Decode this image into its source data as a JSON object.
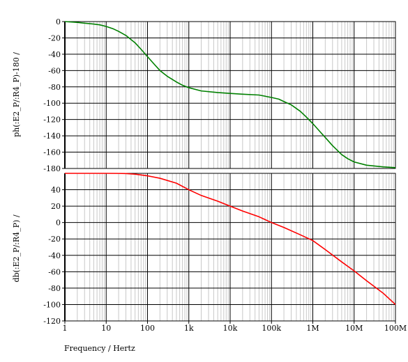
{
  "chart_data": [
    {
      "type": "line",
      "panel": "top",
      "ylabel": "ph(:E2_P/:R4_P)-180 /",
      "xscale": "log",
      "xlim": [
        1,
        100000000
      ],
      "ylim": [
        -180,
        0
      ],
      "yticks": [
        0,
        -20,
        -40,
        -60,
        -80,
        -100,
        -120,
        -140,
        -160,
        -180
      ],
      "ytick_labels": [
        "0",
        "-20",
        "-40",
        "-60",
        "-80",
        "-100",
        "-120",
        "-140",
        "-160",
        "-180"
      ],
      "grid": true,
      "color": "#008000",
      "series": [
        {
          "x": [
            1,
            2,
            3,
            5,
            7,
            10,
            15,
            20,
            30,
            50,
            70,
            100,
            150,
            200,
            300,
            500,
            700,
            1000,
            2000,
            5000,
            10000,
            20000,
            50000,
            100000,
            150000,
            200000,
            300000,
            500000,
            700000,
            1000000,
            1500000,
            2000000,
            3000000,
            5000000,
            7000000,
            10000000,
            20000000,
            50000000,
            100000000
          ],
          "values": [
            0,
            -1,
            -2,
            -3,
            -4,
            -6,
            -9,
            -12,
            -17,
            -26,
            -34,
            -43,
            -53,
            -60,
            -67,
            -74,
            -78,
            -81,
            -85,
            -87,
            -88,
            -89,
            -90,
            -93,
            -95,
            -98,
            -102,
            -110,
            -117,
            -125,
            -135,
            -142,
            -152,
            -163,
            -168,
            -172,
            -176,
            -178,
            -179
          ]
        }
      ]
    },
    {
      "type": "line",
      "panel": "bottom",
      "ylabel": "db(:E2_P/:R4_P) /",
      "xlabel": "Frequency / Hertz",
      "xscale": "log",
      "xlim": [
        1,
        100000000
      ],
      "ylim": [
        -120,
        60
      ],
      "yticks": [
        40,
        20,
        0,
        -20,
        -40,
        -60,
        -80,
        -100,
        -120
      ],
      "ytick_labels": [
        "40",
        "20",
        "0",
        "-20",
        "-40",
        "-60",
        "-80",
        "-100",
        "-120"
      ],
      "xticks": [
        1,
        10,
        100,
        1000,
        10000,
        100000,
        1000000,
        10000000,
        100000000
      ],
      "xtick_labels": [
        "1",
        "10",
        "100",
        "1k",
        "10k",
        "100k",
        "1M",
        "10M",
        "100M"
      ],
      "grid": true,
      "color": "#ff0000",
      "series": [
        {
          "x": [
            1,
            3,
            10,
            20,
            30,
            50,
            100,
            200,
            500,
            1000,
            2000,
            5000,
            10000,
            20000,
            50000,
            100000,
            200000,
            500000,
            1000000,
            2000000,
            5000000,
            10000000,
            20000000,
            50000000,
            100000000
          ],
          "values": [
            60,
            60,
            60,
            59.9,
            59.7,
            59,
            57,
            54,
            48,
            40,
            33,
            26,
            20,
            14,
            7,
            0,
            -6,
            -15,
            -22,
            -33,
            -48,
            -59,
            -71,
            -86,
            -100
          ]
        }
      ]
    }
  ]
}
